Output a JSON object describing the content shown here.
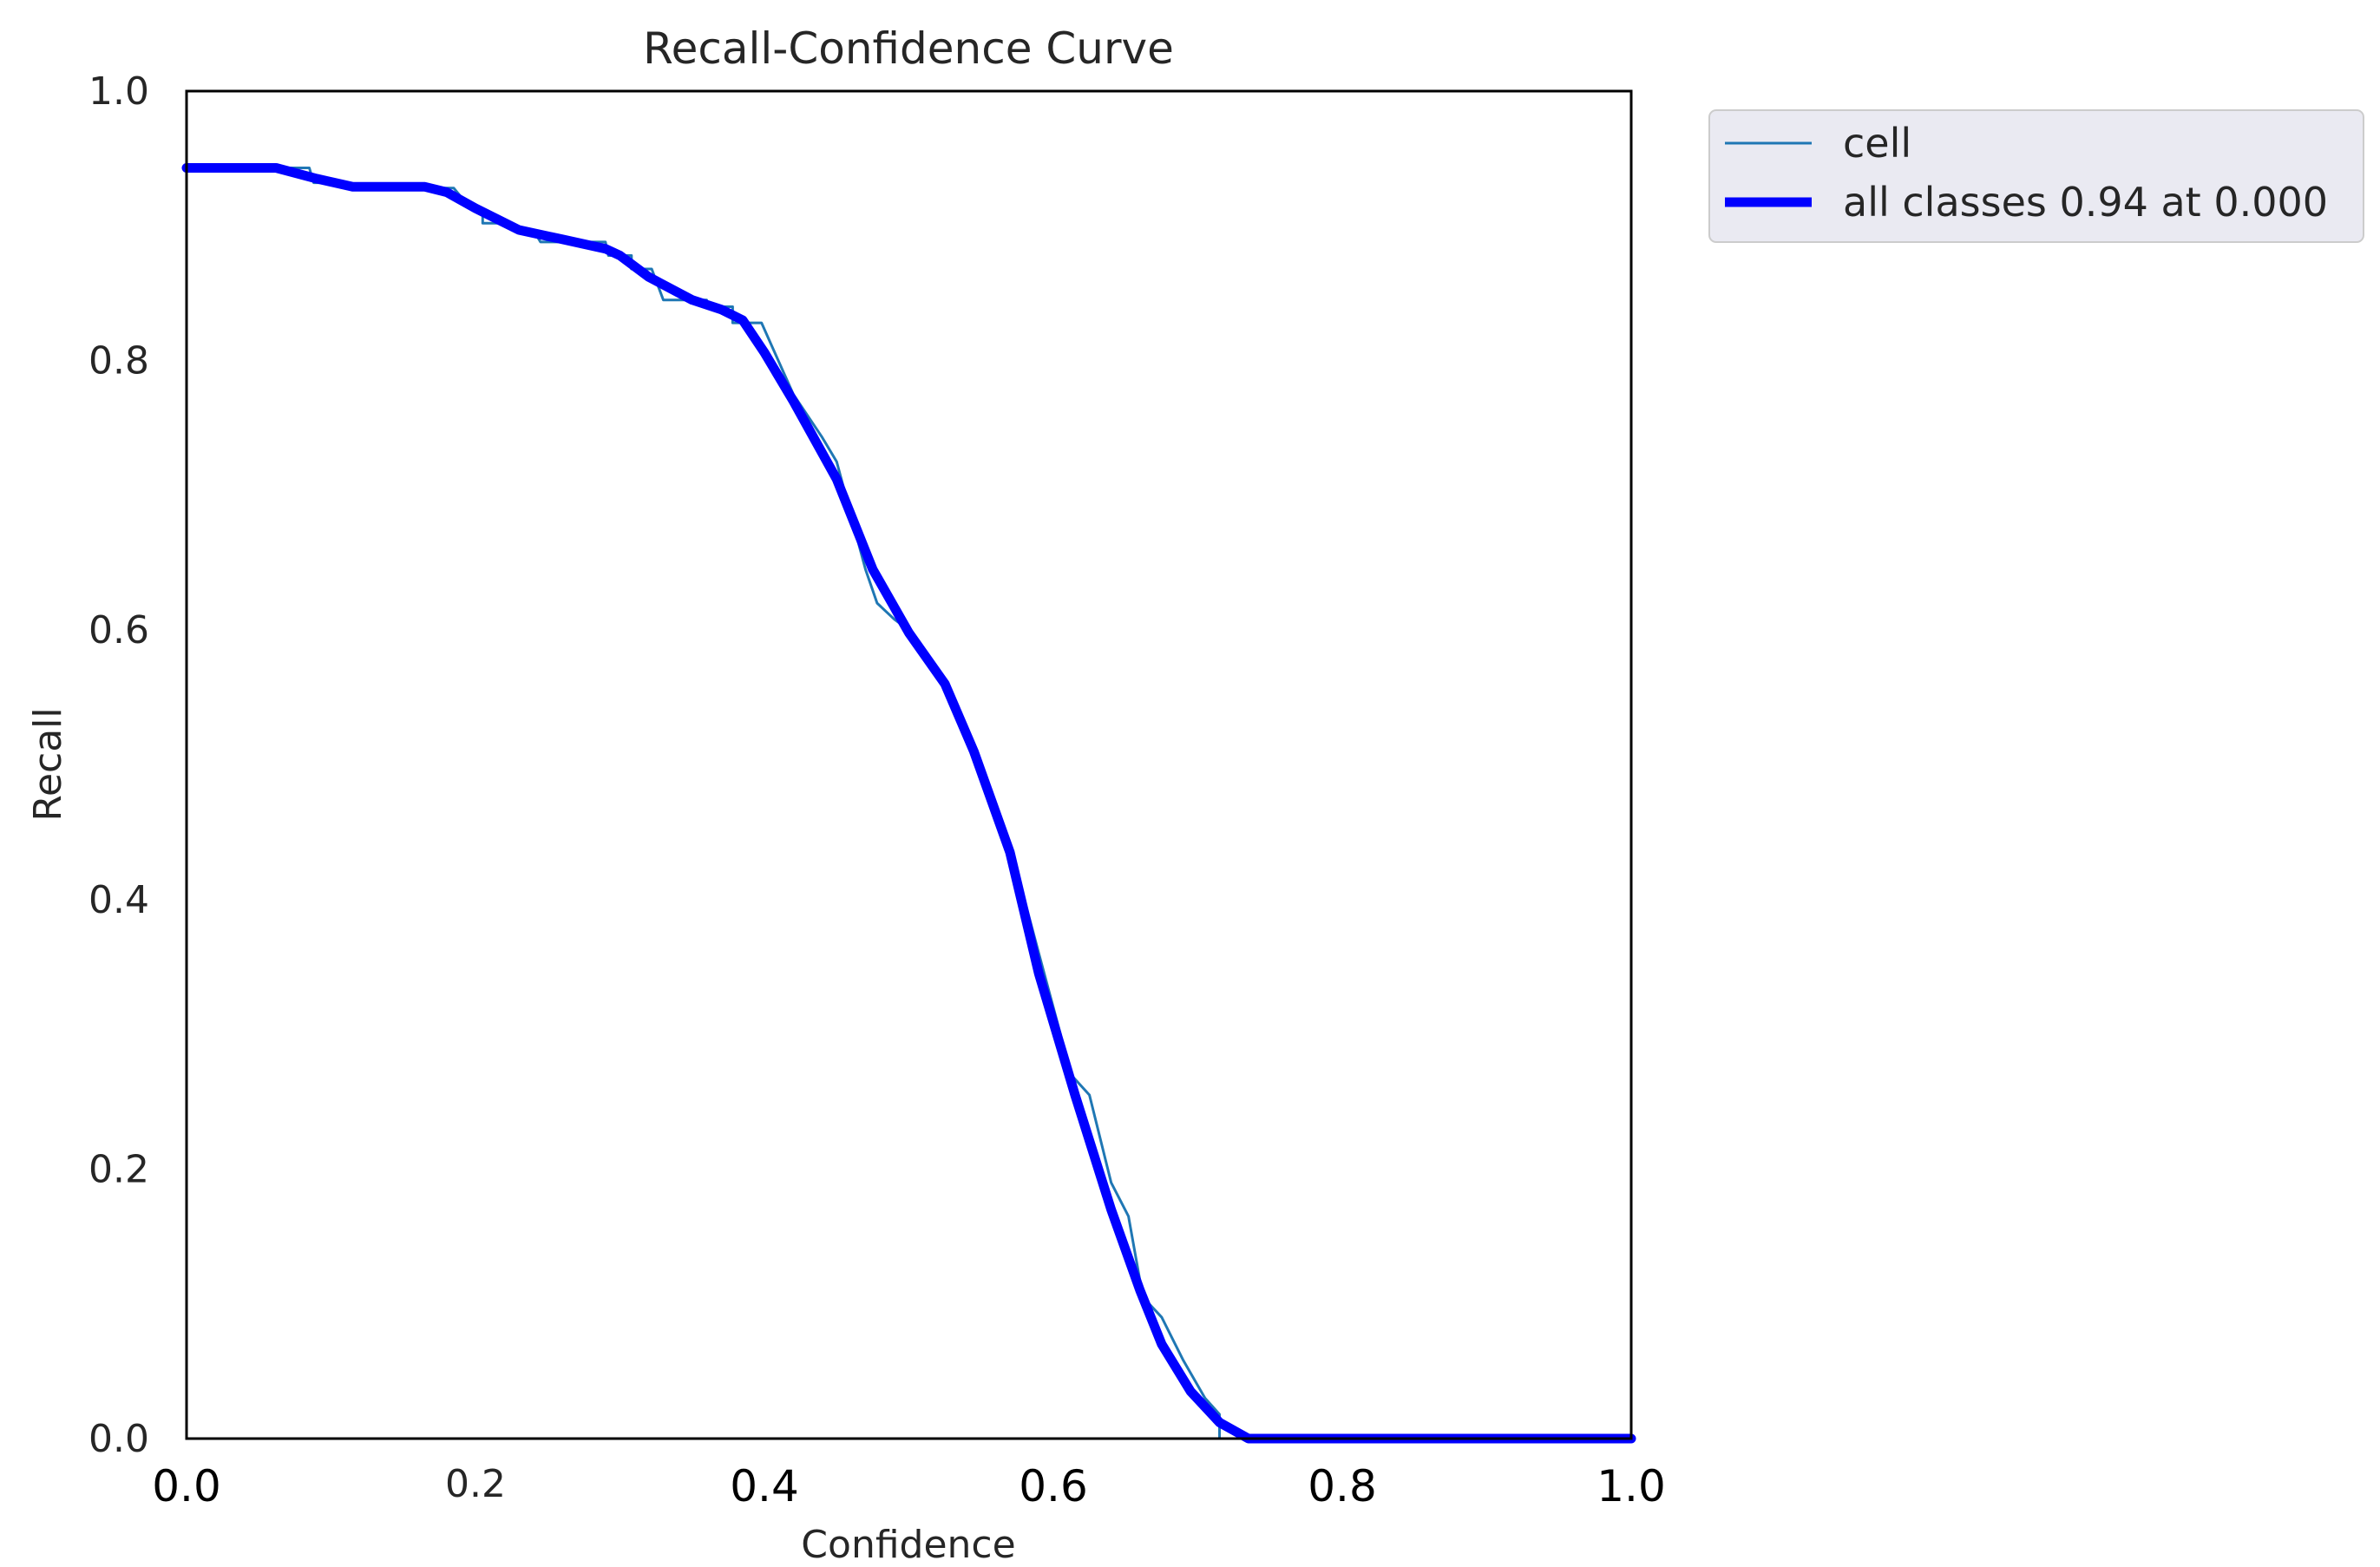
{
  "chart_data": {
    "type": "line",
    "title": "Recall-Confidence Curve",
    "xlabel": "Confidence",
    "ylabel": "Recall",
    "xlim": [
      0.0,
      1.0
    ],
    "ylim": [
      0.0,
      1.0
    ],
    "grid": false,
    "legend_placement": "outside-top-right",
    "x_ticks": [
      {
        "value": 0.0,
        "label": "0.0"
      },
      {
        "value": 0.2,
        "label": "0.2"
      },
      {
        "value": 0.4,
        "label": "0.4"
      },
      {
        "value": 0.6,
        "label": "0.6"
      },
      {
        "value": 0.8,
        "label": "0.8"
      },
      {
        "value": 1.0,
        "label": "1.0"
      }
    ],
    "y_ticks": [
      {
        "value": 0.0,
        "label": "0.0"
      },
      {
        "value": 0.2,
        "label": "0.2"
      },
      {
        "value": 0.4,
        "label": "0.4"
      },
      {
        "value": 0.6,
        "label": "0.6"
      },
      {
        "value": 0.8,
        "label": "0.8"
      },
      {
        "value": 1.0,
        "label": "1.0"
      }
    ],
    "series": [
      {
        "name": "cell",
        "color": "#1f77b4",
        "style": "thin-step",
        "points": [
          [
            0.0,
            0.943
          ],
          [
            0.085,
            0.943
          ],
          [
            0.088,
            0.932
          ],
          [
            0.1,
            0.932
          ],
          [
            0.11,
            0.928
          ],
          [
            0.185,
            0.928
          ],
          [
            0.195,
            0.915
          ],
          [
            0.205,
            0.912
          ],
          [
            0.205,
            0.902
          ],
          [
            0.225,
            0.902
          ],
          [
            0.225,
            0.897
          ],
          [
            0.24,
            0.897
          ],
          [
            0.245,
            0.888
          ],
          [
            0.29,
            0.888
          ],
          [
            0.292,
            0.878
          ],
          [
            0.308,
            0.878
          ],
          [
            0.308,
            0.868
          ],
          [
            0.322,
            0.868
          ],
          [
            0.33,
            0.845
          ],
          [
            0.36,
            0.845
          ],
          [
            0.36,
            0.84
          ],
          [
            0.378,
            0.84
          ],
          [
            0.378,
            0.828
          ],
          [
            0.398,
            0.828
          ],
          [
            0.42,
            0.775
          ],
          [
            0.44,
            0.743
          ],
          [
            0.45,
            0.725
          ],
          [
            0.47,
            0.645
          ],
          [
            0.478,
            0.62
          ],
          [
            0.49,
            0.608
          ],
          [
            0.5,
            0.6
          ],
          [
            0.51,
            0.58
          ],
          [
            0.528,
            0.555
          ],
          [
            0.54,
            0.52
          ],
          [
            0.56,
            0.465
          ],
          [
            0.575,
            0.42
          ],
          [
            0.59,
            0.36
          ],
          [
            0.605,
            0.3
          ],
          [
            0.608,
            0.275
          ],
          [
            0.625,
            0.255
          ],
          [
            0.64,
            0.19
          ],
          [
            0.652,
            0.165
          ],
          [
            0.662,
            0.105
          ],
          [
            0.675,
            0.09
          ],
          [
            0.69,
            0.058
          ],
          [
            0.705,
            0.03
          ],
          [
            0.715,
            0.018
          ],
          [
            0.715,
            0.0
          ],
          [
            1.0,
            0.0
          ]
        ]
      },
      {
        "name": "all classes 0.94 at 0.000",
        "color": "#0000ff",
        "style": "thick",
        "points": [
          [
            0.0,
            0.943
          ],
          [
            0.062,
            0.943
          ],
          [
            0.09,
            0.935
          ],
          [
            0.115,
            0.929
          ],
          [
            0.165,
            0.929
          ],
          [
            0.18,
            0.925
          ],
          [
            0.2,
            0.913
          ],
          [
            0.23,
            0.897
          ],
          [
            0.26,
            0.89
          ],
          [
            0.29,
            0.883
          ],
          [
            0.3,
            0.878
          ],
          [
            0.32,
            0.862
          ],
          [
            0.35,
            0.845
          ],
          [
            0.37,
            0.838
          ],
          [
            0.385,
            0.83
          ],
          [
            0.4,
            0.806
          ],
          [
            0.42,
            0.77
          ],
          [
            0.45,
            0.712
          ],
          [
            0.475,
            0.645
          ],
          [
            0.5,
            0.598
          ],
          [
            0.525,
            0.56
          ],
          [
            0.545,
            0.51
          ],
          [
            0.57,
            0.435
          ],
          [
            0.59,
            0.345
          ],
          [
            0.615,
            0.255
          ],
          [
            0.64,
            0.17
          ],
          [
            0.66,
            0.11
          ],
          [
            0.675,
            0.07
          ],
          [
            0.695,
            0.035
          ],
          [
            0.715,
            0.012
          ],
          [
            0.735,
            0.0
          ],
          [
            1.0,
            0.0
          ]
        ]
      }
    ]
  }
}
